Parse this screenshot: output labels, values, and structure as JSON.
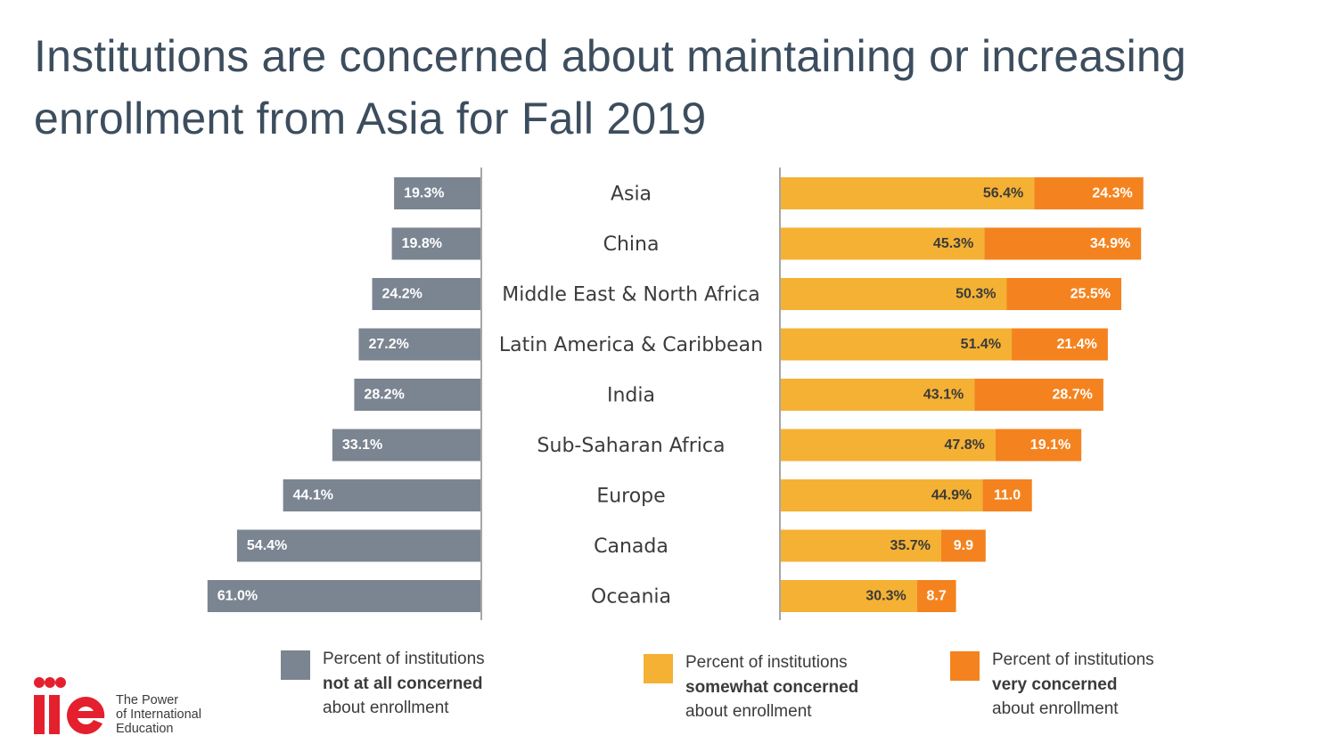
{
  "title": "Institutions are concerned about maintaining or increasing enrollment from Asia for Fall 2019",
  "colors": {
    "not_at_all": "#7b8591",
    "somewhat": "#f4b133",
    "very": "#f4831f",
    "axis": "#a6a6a6",
    "title": "#3c4d5e"
  },
  "chart_data": {
    "type": "bar",
    "orientation": "horizontal",
    "layout": "diverging",
    "categories": [
      "Asia",
      "China",
      "Middle East & North Africa",
      "Latin America & Caribbean",
      "India",
      "Sub-Saharan Africa",
      "Europe",
      "Canada",
      "Oceania"
    ],
    "series": [
      {
        "name": "Percent of institutions not at all concerned about enrollment",
        "values": [
          19.3,
          19.8,
          24.2,
          27.2,
          28.2,
          33.1,
          44.1,
          54.4,
          61.0
        ],
        "labels": [
          "19.3%",
          "19.8%",
          "24.2%",
          "27.2%",
          "28.2%",
          "33.1%",
          "44.1%",
          "54.4%",
          "61.0%"
        ]
      },
      {
        "name": "Percent of institutions somewhat concerned about enrollment",
        "values": [
          56.4,
          45.3,
          50.3,
          51.4,
          43.1,
          47.8,
          44.9,
          35.7,
          30.3
        ],
        "labels": [
          "56.4%",
          "45.3%",
          "50.3%",
          "51.4%",
          "43.1%",
          "47.8%",
          "44.9%",
          "35.7%",
          "30.3%"
        ]
      },
      {
        "name": "Percent of institutions very concerned about enrollment",
        "values": [
          24.3,
          34.9,
          25.5,
          21.4,
          28.7,
          19.1,
          11.0,
          9.9,
          8.7
        ],
        "labels": [
          "24.3%",
          "34.9%",
          "25.5%",
          "21.4%",
          "28.7%",
          "19.1%",
          "11.0",
          "9.9",
          "8.7"
        ]
      }
    ],
    "xlabel": "",
    "ylabel": ""
  },
  "legend": [
    {
      "line1": "Percent of institutions",
      "line2": "not at all concerned",
      "line3": "about enrollment"
    },
    {
      "line1": "Percent of institutions",
      "line2": "somewhat concerned",
      "line3": "about enrollment"
    },
    {
      "line1": "Percent of institutions",
      "line2": "very concerned",
      "line3": "about enrollment"
    }
  ],
  "logo": {
    "mark": "iie",
    "line1": "The Power",
    "line2": "of International",
    "line3": "Education"
  }
}
